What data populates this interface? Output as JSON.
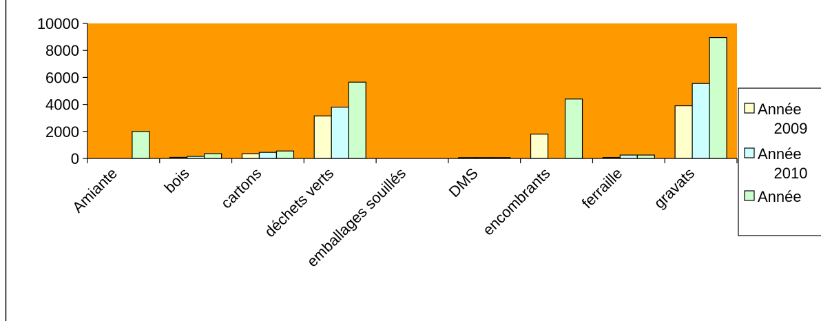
{
  "chart_data": {
    "type": "bar",
    "categories": [
      "Amiante",
      "bois",
      "cartons",
      "déchets verts",
      "emballages souillés",
      "DMS",
      "encombrants",
      "ferraille",
      "gravats"
    ],
    "series": [
      {
        "name": "Année 2009",
        "values": [
          0,
          80,
          350,
          3150,
          0,
          60,
          1800,
          70,
          3900
        ]
      },
      {
        "name": "Année 2010",
        "values": [
          0,
          150,
          450,
          3800,
          0,
          60,
          0,
          250,
          5550
        ]
      },
      {
        "name": "Année",
        "values": [
          2000,
          350,
          550,
          5650,
          0,
          60,
          4400,
          250,
          8950
        ]
      }
    ],
    "ylim": [
      0,
      10000
    ],
    "yticks": [
      0,
      2000,
      4000,
      6000,
      8000,
      10000
    ],
    "legend": {
      "placement": "right",
      "entries": [
        {
          "line1": "Année",
          "line2": "2009"
        },
        {
          "line1": "Année",
          "line2": "2010"
        },
        {
          "line1": "Année",
          "line2": ""
        }
      ]
    },
    "colors": {
      "plot_background": "#FF9900",
      "series": [
        "#FFFFCC",
        "#CCFFFF",
        "#CCFFCC"
      ],
      "bar_stroke": "#000000"
    },
    "grid": false,
    "title": "",
    "xlabel": "",
    "ylabel": ""
  }
}
